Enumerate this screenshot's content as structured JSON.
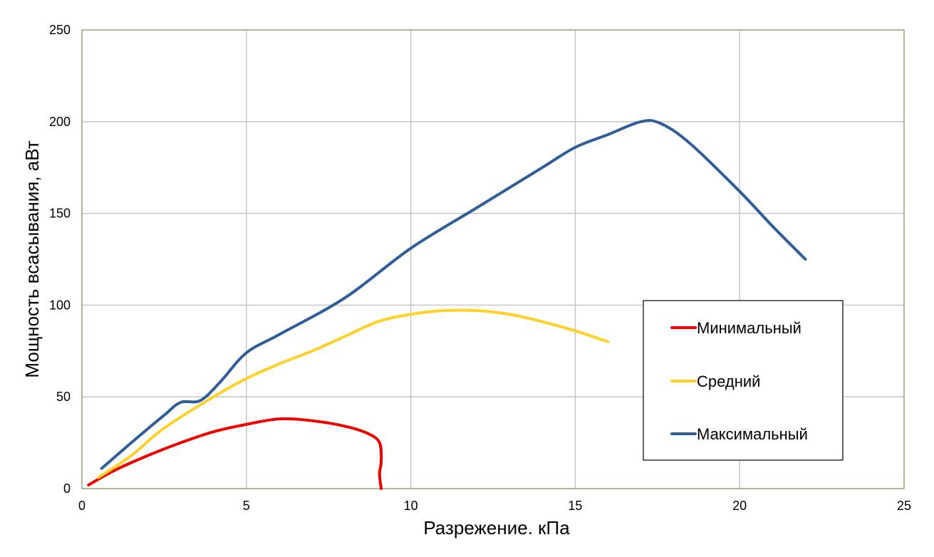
{
  "chart_data": {
    "type": "line",
    "title": "",
    "xlabel": "Разрежение. кПа",
    "ylabel": "Мощность всасывания, аВт",
    "xlim": [
      0,
      25
    ],
    "ylim": [
      0,
      250
    ],
    "xticks": [
      0,
      5,
      10,
      15,
      20,
      25
    ],
    "yticks": [
      0,
      50,
      100,
      150,
      200,
      250
    ],
    "xtick_labels": [
      "0",
      "5",
      "10",
      "15",
      "20",
      "25"
    ],
    "ytick_labels": [
      "0",
      "50",
      "100",
      "150",
      "200",
      "250"
    ],
    "grid": true,
    "legend_position": "right",
    "series": [
      {
        "name": "Минимальный",
        "color": "#ee0000",
        "points": [
          [
            0.2,
            2
          ],
          [
            1.0,
            10
          ],
          [
            2.0,
            18
          ],
          [
            3.0,
            25
          ],
          [
            4.0,
            31
          ],
          [
            5.0,
            35
          ],
          [
            6.0,
            38
          ],
          [
            7.0,
            37
          ],
          [
            8.0,
            34
          ],
          [
            8.7,
            30
          ],
          [
            9.05,
            25
          ],
          [
            9.1,
            15
          ],
          [
            9.05,
            8
          ],
          [
            9.1,
            0
          ]
        ]
      },
      {
        "name": "Средний",
        "color": "#ffd028",
        "points": [
          [
            0.5,
            6
          ],
          [
            1.5,
            18
          ],
          [
            2.5,
            33
          ],
          [
            4.0,
            50
          ],
          [
            5.0,
            60
          ],
          [
            6.0,
            68
          ],
          [
            7.0,
            75
          ],
          [
            8.0,
            83
          ],
          [
            9.0,
            91
          ],
          [
            10.0,
            95
          ],
          [
            11.0,
            97
          ],
          [
            12.0,
            97
          ],
          [
            13.0,
            95
          ],
          [
            14.0,
            91
          ],
          [
            15.0,
            86
          ],
          [
            16.0,
            80
          ]
        ]
      },
      {
        "name": "Максимальный",
        "color": "#2e5e9a",
        "points": [
          [
            0.6,
            11
          ],
          [
            1.5,
            25
          ],
          [
            2.5,
            40
          ],
          [
            3.0,
            47
          ],
          [
            3.6,
            48
          ],
          [
            4.2,
            58
          ],
          [
            5.0,
            74
          ],
          [
            6.0,
            84
          ],
          [
            8.0,
            104
          ],
          [
            10.0,
            131
          ],
          [
            12.0,
            153
          ],
          [
            14.0,
            175
          ],
          [
            15.0,
            186
          ],
          [
            16.0,
            193
          ],
          [
            17.0,
            200
          ],
          [
            17.6,
            199
          ],
          [
            18.5,
            188
          ],
          [
            20.0,
            162
          ],
          [
            21.0,
            143
          ],
          [
            22.0,
            125
          ]
        ]
      }
    ]
  }
}
